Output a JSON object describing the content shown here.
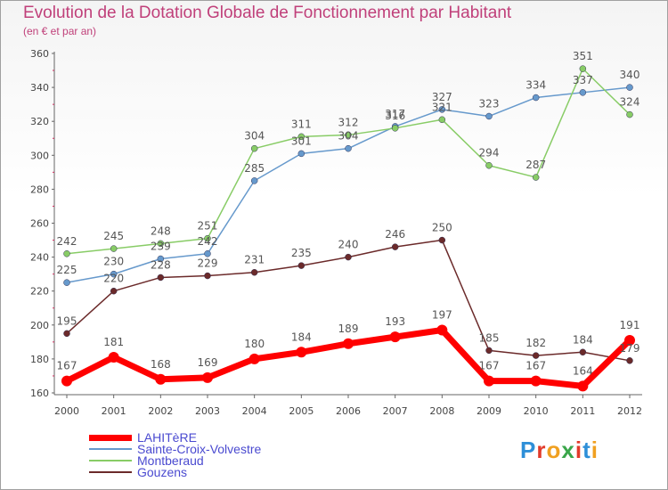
{
  "chart_data": {
    "type": "line",
    "title": "Evolution de la Dotation Globale de Fonctionnement par Habitant",
    "subtitle": "(en € et par an)",
    "x": [
      "2000",
      "2001",
      "2002",
      "2003",
      "2004",
      "2005",
      "2006",
      "2007",
      "2008",
      "2009",
      "2010",
      "2011",
      "2012"
    ],
    "ylim": [
      160,
      360
    ],
    "yticks": [
      160,
      180,
      200,
      220,
      240,
      260,
      280,
      300,
      320,
      340,
      360
    ],
    "grid": false,
    "legend_position": "bottom-left",
    "series": [
      {
        "name": "LAHITèRE",
        "color": "#ff0000",
        "values": [
          167,
          181,
          168,
          169,
          180,
          184,
          189,
          193,
          197,
          167,
          167,
          164,
          191
        ]
      },
      {
        "name": "Sainte-Croix-Volvestre",
        "color": "#6699cc",
        "values": [
          225,
          230,
          239,
          242,
          285,
          301,
          304,
          317,
          327,
          323,
          334,
          337,
          340
        ]
      },
      {
        "name": "Montberaud",
        "color": "#88cc66",
        "values": [
          242,
          245,
          248,
          251,
          304,
          311,
          312,
          316,
          321,
          294,
          287,
          351,
          324
        ]
      },
      {
        "name": "Gouzens",
        "color": "#6b2a2a",
        "values": [
          195,
          220,
          228,
          229,
          231,
          235,
          240,
          246,
          250,
          185,
          182,
          184,
          179
        ]
      }
    ]
  },
  "logo": {
    "text": "Proxiti"
  }
}
